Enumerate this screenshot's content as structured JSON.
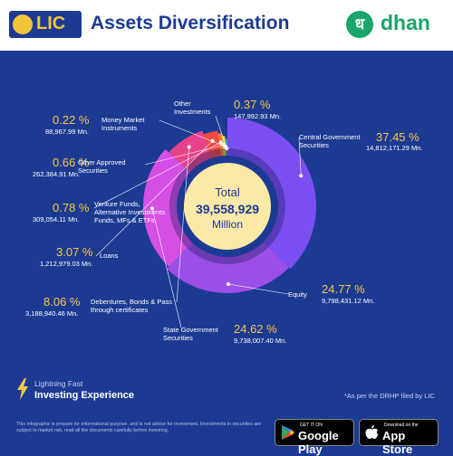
{
  "header": {
    "brand_left": "LIC",
    "title": "Assets Diversification",
    "brand_right": "dhan",
    "brand_right_glyph": "ध"
  },
  "center": {
    "line1": "Total",
    "line2": "39,558,929",
    "line3": "Million"
  },
  "chart_data": {
    "type": "pie",
    "subtype": "donut",
    "total_text": "39,558,929 Million",
    "slices": [
      {
        "name": "Central Government Securities",
        "percent": 37.45,
        "value": "14,812,171.29 Mn.",
        "color": "#7b4ff2"
      },
      {
        "name": "Equity",
        "percent": 24.77,
        "value": "9,798,431.12 Mn.",
        "color": "#9b4ee8"
      },
      {
        "name": "State Government Securities",
        "percent": 24.62,
        "value": "9,738,007.40 Mn.",
        "color": "#d64fe5"
      },
      {
        "name": "Debentures, Bonds & Pass through certificates",
        "percent": 8.06,
        "value": "3,188,940.46 Mn.",
        "color": "#e8428a"
      },
      {
        "name": "Loans",
        "percent": 3.07,
        "value": "1,212,979.03 Mn.",
        "color": "#ef4a42"
      },
      {
        "name": "Venture Funds, Alternative Investments Funds, MFs & ETFs",
        "percent": 0.78,
        "value": "309,054.11 Mn.",
        "color": "#f57b2b"
      },
      {
        "name": "Other Approved Securities",
        "percent": 0.66,
        "value": "262,384.91 Mn.",
        "color": "#f7c132"
      },
      {
        "name": "Money Market Instruments",
        "percent": 0.22,
        "value": "88,967.99 Mn.",
        "color": "#7dcf3c"
      },
      {
        "name": "Other Investments",
        "percent": 0.37,
        "value": "147,992.93 Mn.",
        "color": "#2f9bd7"
      }
    ]
  },
  "labels": {
    "central": {
      "pct": "37.45 %",
      "value": "14,812,171.29 Mn.",
      "name": "Central Government Securities"
    },
    "equity": {
      "pct": "24.77 %",
      "value": "9,798,431.12 Mn.",
      "name": "Equity"
    },
    "state": {
      "pct": "24.62 %",
      "value": "9,738,007.40 Mn.",
      "name": "State Government Securities"
    },
    "debentures": {
      "pct": "8.06 %",
      "value": "3,188,940.46 Mn.",
      "name": "Debentures, Bonds & Pass through certificates"
    },
    "loans": {
      "pct": "3.07 %",
      "value": "1,212,979.03 Mn.",
      "name": "Loans"
    },
    "venture": {
      "pct": "0.78 %",
      "value": "309,054.11 Mn.",
      "name": "Venture Funds, Alternative Investments Funds, MFs & ETFs"
    },
    "other_approved": {
      "pct": "0.66 %",
      "value": "262,384.91 Mn.",
      "name": "Other Approved Securities"
    },
    "money_market": {
      "pct": "0.22 %",
      "value": "88,967.99 Mn.",
      "name": "Money Market Instruments"
    },
    "other_inv": {
      "pct": "0.37 %",
      "value": "147,992.93 Mn.",
      "name": "Other Investments"
    }
  },
  "footer": {
    "tag_line1": "Lightning Fast",
    "tag_line2": "Investing Experience",
    "note": "*As per the DRHP filed by LIC",
    "disclaimer": "This infographic is prepare for informational purpose, and is not advice for investment. Investments in securities are subject to market risk, read all the documents carefully before investing.",
    "google_small": "GET IT ON",
    "google_big": "Google Play",
    "apple_small": "Download on the",
    "apple_big": "App Store"
  }
}
